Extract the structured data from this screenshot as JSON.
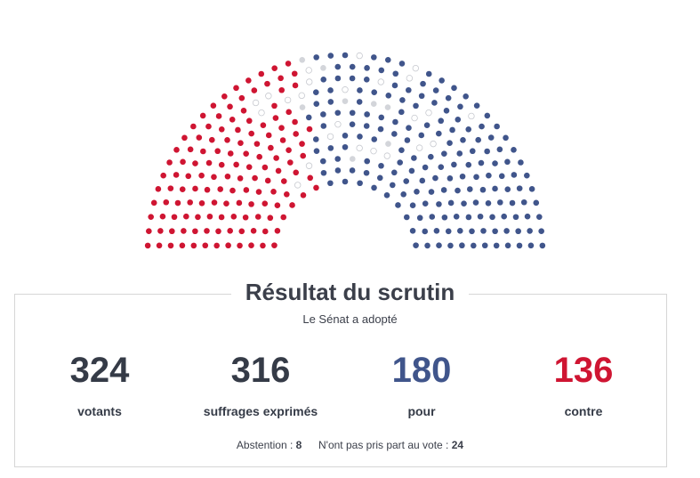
{
  "colors": {
    "pour": "#40558b",
    "contre": "#cf1532",
    "abstention": "#d3d5da",
    "absent": "#ffffff",
    "text": "#353b47"
  },
  "title": "Résultat du scrutin",
  "verdict": "Le Sénat a adopté",
  "stats": {
    "votants": {
      "value": "324",
      "label": "votants"
    },
    "exprimes": {
      "value": "316",
      "label": "suffrages exprimés"
    },
    "pour": {
      "value": "180",
      "label": "pour"
    },
    "contre": {
      "value": "136",
      "label": "contre"
    }
  },
  "footnote": {
    "abstention_label": "Abstention :",
    "abstention_value": "8",
    "non_votant_label": "N'ont pas pris part au vote :",
    "non_votant_value": "24"
  },
  "chart_data": {
    "type": "hemicycle",
    "seats_total": 348,
    "series": [
      {
        "name": "pour",
        "value": 180
      },
      {
        "name": "contre",
        "value": 136
      },
      {
        "name": "abstention",
        "value": 8
      },
      {
        "name": "non votants",
        "value": 24
      }
    ]
  }
}
